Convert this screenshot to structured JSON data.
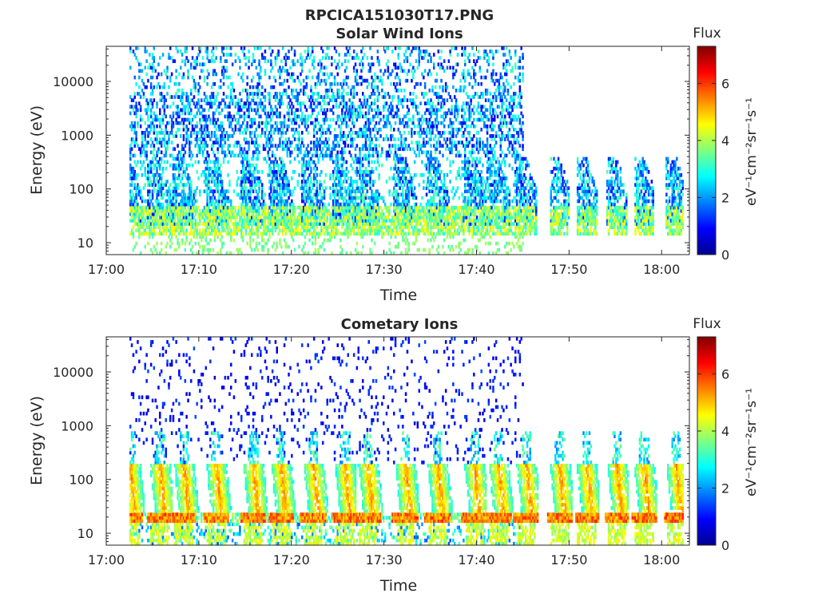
{
  "figure": {
    "title": "RPCICA151030T17.PNG"
  },
  "chart_data": [
    {
      "type": "heatmap",
      "title": "Solar Wind Ions",
      "xlabel": "Time",
      "ylabel": "Energy (eV)",
      "x_ticks": [
        "17:00",
        "17:10",
        "17:20",
        "17:30",
        "17:40",
        "17:50",
        "18:00"
      ],
      "x_range_minutes": [
        0,
        63
      ],
      "y_scale": "log",
      "y_ticks": [
        "10",
        "100",
        "1000",
        "10000"
      ],
      "y_range": [
        6,
        45000
      ],
      "colorbar": {
        "label": "Flux",
        "unit": "eV⁻¹cm⁻²sr⁻¹s⁻¹",
        "ticks": [
          "0",
          "2",
          "4",
          "6"
        ],
        "range": [
          0,
          7.3
        ],
        "colormap": "jet"
      },
      "sweeps_minutes": [
        2.5,
        5.7,
        8.3,
        11.8,
        15.8,
        18.8,
        22.3,
        25.7,
        28.2,
        32.2,
        35.7,
        39.7,
        42.3,
        45.3,
        48.9,
        51.8,
        55.1,
        58.0,
        61.5
      ],
      "data_end_minutes": 62.3
    },
    {
      "type": "heatmap",
      "title": "Cometary Ions",
      "xlabel": "Time",
      "ylabel": "Energy (eV)",
      "x_ticks": [
        "17:00",
        "17:10",
        "17:20",
        "17:30",
        "17:40",
        "17:50",
        "18:00"
      ],
      "x_range_minutes": [
        0,
        63
      ],
      "y_scale": "log",
      "y_ticks": [
        "10",
        "100",
        "1000",
        "10000"
      ],
      "y_range": [
        6,
        45000
      ],
      "colorbar": {
        "label": "Flux",
        "unit": "eV⁻¹cm⁻²sr⁻¹s⁻¹",
        "ticks": [
          "0",
          "2",
          "4",
          "6"
        ],
        "range": [
          0,
          7.3
        ],
        "colormap": "jet"
      },
      "sweeps_minutes": [
        2.5,
        5.7,
        8.3,
        11.8,
        15.8,
        18.8,
        22.3,
        25.7,
        28.2,
        32.2,
        35.7,
        39.7,
        42.3,
        45.3,
        48.9,
        51.8,
        55.1,
        58.0,
        61.5
      ],
      "data_end_minutes": 62.3
    }
  ]
}
